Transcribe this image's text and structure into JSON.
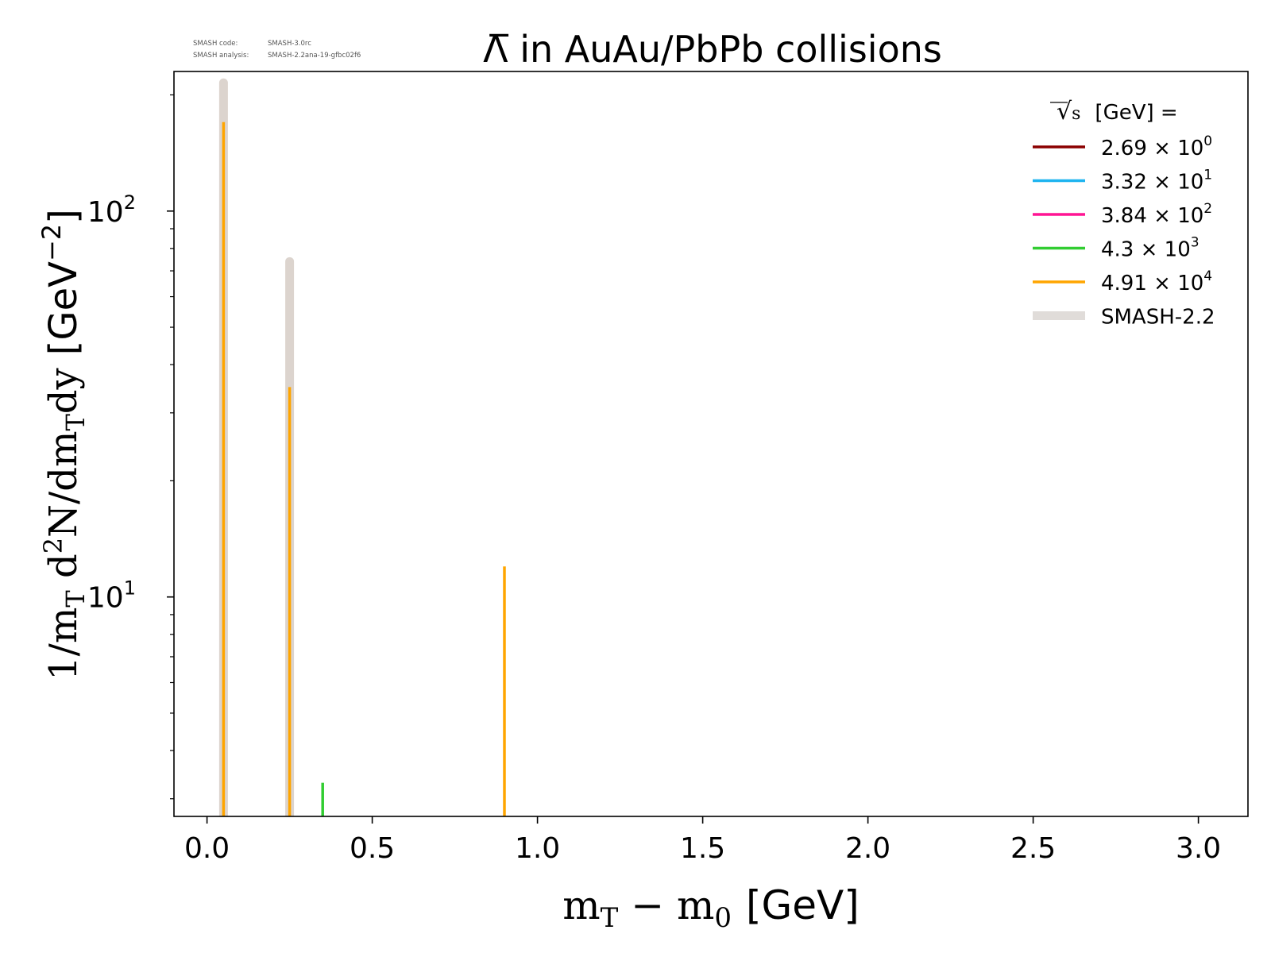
{
  "chart_data": {
    "type": "line",
    "title": "Λ̅ in AuAu/PbPb collisions",
    "xlabel_main": "m",
    "xlabel_sub": "T",
    "xlabel_rest": " − m",
    "xlabel_sub2": "0",
    "xlabel_unit": "[GeV]",
    "ylabel_prefix": "1/m",
    "ylabel_sub": "T",
    "ylabel_mid": " d",
    "ylabel_sup": "2",
    "ylabel_mid2": "N/dm",
    "ylabel_sub2": "T",
    "ylabel_end": "dy",
    "ylabel_unit": "[GeV",
    "ylabel_unit_sup": "−2",
    "ylabel_unit_close": "]",
    "xlim": [
      -0.1,
      3.15
    ],
    "ylim": [
      2.7,
      230
    ],
    "yscale": "log",
    "xticks": [
      {
        "value": 0.0,
        "label": "0.0"
      },
      {
        "value": 0.5,
        "label": "0.5"
      },
      {
        "value": 1.0,
        "label": "1.0"
      },
      {
        "value": 1.5,
        "label": "1.5"
      },
      {
        "value": 2.0,
        "label": "2.0"
      },
      {
        "value": 2.5,
        "label": "2.5"
      },
      {
        "value": 3.0,
        "label": "3.0"
      }
    ],
    "yticks_major": [
      {
        "value": 10,
        "base": "10",
        "exp": "1"
      },
      {
        "value": 100,
        "base": "10",
        "exp": "2"
      }
    ],
    "yticks_minor": [
      3,
      4,
      5,
      6,
      7,
      8,
      9,
      20,
      30,
      40,
      50,
      60,
      70,
      80,
      90,
      200
    ],
    "legend_position": "top-right",
    "legend_title": "[GeV] =",
    "legend_sqrt_symbol": "√",
    "legend_sqrt_var": "s",
    "series": [
      {
        "name": "2.69",
        "exp": "0",
        "color": "#8b0000",
        "points": []
      },
      {
        "name": "3.32",
        "exp": "1",
        "color": "#1eb4f0",
        "points": []
      },
      {
        "name": "3.84",
        "exp": "2",
        "color": "#ff1493",
        "points": []
      },
      {
        "name": "4.3",
        "exp": "3",
        "color": "#32cd32",
        "points": [
          [
            0.35,
            3.3
          ]
        ]
      },
      {
        "name": "4.91",
        "exp": "4",
        "color": "#ffa500",
        "points": [
          [
            0.05,
            170
          ],
          [
            0.25,
            35
          ],
          [
            0.9,
            12
          ]
        ]
      }
    ],
    "reference": {
      "name": "SMASH-2.2",
      "color": "#dcd4ce",
      "points": [
        [
          0.05,
          215
        ],
        [
          0.25,
          74
        ]
      ],
      "faint_points": [
        [
          0.05,
          4.2
        ],
        [
          0.25,
          7.5
        ]
      ]
    }
  },
  "version_info": {
    "code_label": "SMASH code:",
    "code_value": "SMASH-3.0rc",
    "analysis_label": "SMASH analysis:",
    "analysis_value": "SMASH-2.2ana-19-gfbc02f6"
  },
  "colors": {
    "axis": "#000000",
    "version_text": "#555555"
  },
  "multiply_sign": "×"
}
